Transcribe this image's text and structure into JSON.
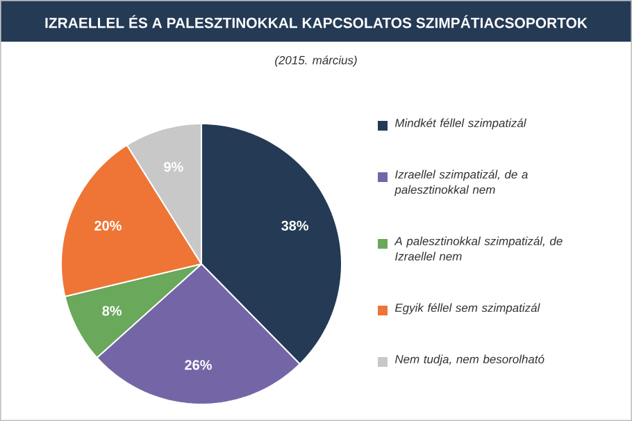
{
  "chart_data": {
    "type": "pie",
    "title": "IZRAELLEL ÉS A PALESZTINOKKAL KAPCSOLATOS SZIMPÁTIACSOPORTOK",
    "subtitle": "(2015. március)",
    "categories": [
      "Mindkét féllel szimpatizál",
      "Izraellel szimpatizál, de a palesztinokkal nem",
      "A palesztinokkal szimpatizál, de Izraellel nem",
      "Egyik féllel sem szimpatizál",
      "Nem tudja, nem besorolható"
    ],
    "values": [
      38,
      26,
      8,
      20,
      9
    ],
    "value_labels": [
      "38%",
      "26%",
      "8%",
      "20%",
      "9%"
    ],
    "colors": [
      "#243a55",
      "#7466a6",
      "#6aa85c",
      "#ee7535",
      "#c8c8c8"
    ],
    "legend": "right"
  }
}
